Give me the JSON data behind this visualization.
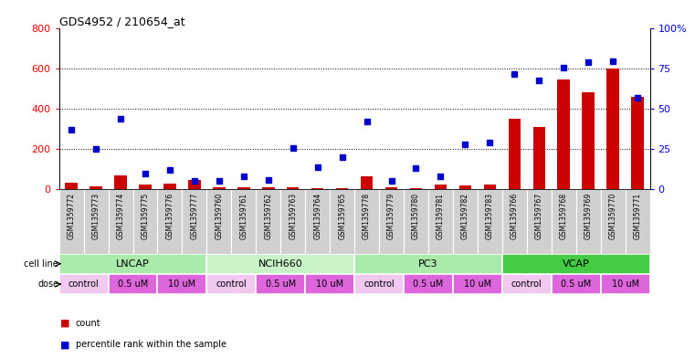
{
  "title": "GDS4952 / 210654_at",
  "samples": [
    "GSM1359772",
    "GSM1359773",
    "GSM1359774",
    "GSM1359775",
    "GSM1359776",
    "GSM1359777",
    "GSM1359760",
    "GSM1359761",
    "GSM1359762",
    "GSM1359763",
    "GSM1359764",
    "GSM1359765",
    "GSM1359778",
    "GSM1359779",
    "GSM1359780",
    "GSM1359781",
    "GSM1359782",
    "GSM1359783",
    "GSM1359766",
    "GSM1359767",
    "GSM1359768",
    "GSM1359769",
    "GSM1359770",
    "GSM1359771"
  ],
  "counts": [
    35,
    15,
    70,
    25,
    30,
    45,
    8,
    10,
    12,
    8,
    6,
    5,
    65,
    8,
    5,
    25,
    20,
    25,
    350,
    310,
    545,
    485,
    600,
    460
  ],
  "percentile": [
    37,
    25,
    44,
    10,
    12,
    5,
    5,
    8,
    6,
    26,
    14,
    20,
    42,
    5,
    13,
    8,
    28,
    29,
    72,
    68,
    76,
    79,
    80,
    57
  ],
  "cell_lines": [
    {
      "name": "LNCAP",
      "start": 0,
      "end": 6,
      "color": "#aaeaaa"
    },
    {
      "name": "NCIH660",
      "start": 6,
      "end": 12,
      "color": "#c8f4c8"
    },
    {
      "name": "PC3",
      "start": 12,
      "end": 18,
      "color": "#aaeaaa"
    },
    {
      "name": "VCAP",
      "start": 18,
      "end": 24,
      "color": "#44cc44"
    }
  ],
  "dose_segments": [
    {
      "start": 0,
      "end": 2,
      "label": "control",
      "color": "#f0c8f0"
    },
    {
      "start": 2,
      "end": 4,
      "label": "0.5 uM",
      "color": "#dd66dd"
    },
    {
      "start": 4,
      "end": 6,
      "label": "10 uM",
      "color": "#dd66dd"
    },
    {
      "start": 6,
      "end": 8,
      "label": "control",
      "color": "#f0c8f0"
    },
    {
      "start": 8,
      "end": 10,
      "label": "0.5 uM",
      "color": "#dd66dd"
    },
    {
      "start": 10,
      "end": 12,
      "label": "10 uM",
      "color": "#dd66dd"
    },
    {
      "start": 12,
      "end": 14,
      "label": "control",
      "color": "#f0c8f0"
    },
    {
      "start": 14,
      "end": 16,
      "label": "0.5 uM",
      "color": "#dd66dd"
    },
    {
      "start": 16,
      "end": 18,
      "label": "10 uM",
      "color": "#dd66dd"
    },
    {
      "start": 18,
      "end": 20,
      "label": "control",
      "color": "#f0c8f0"
    },
    {
      "start": 20,
      "end": 22,
      "label": "0.5 uM",
      "color": "#dd66dd"
    },
    {
      "start": 22,
      "end": 24,
      "label": "10 uM",
      "color": "#dd66dd"
    }
  ],
  "count_color": "#cc0000",
  "percentile_color": "#0000cc",
  "ylim_left": [
    0,
    800
  ],
  "ylim_right": [
    0,
    100
  ],
  "yticks_left": [
    0,
    200,
    400,
    600,
    800
  ],
  "yticks_right": [
    0,
    25,
    50,
    75,
    100
  ],
  "grid_vals": [
    200,
    400,
    600
  ],
  "bg_color": "#ffffff",
  "gray_bg": "#d0d0d0",
  "bar_width": 0.5,
  "marker_size": 5
}
